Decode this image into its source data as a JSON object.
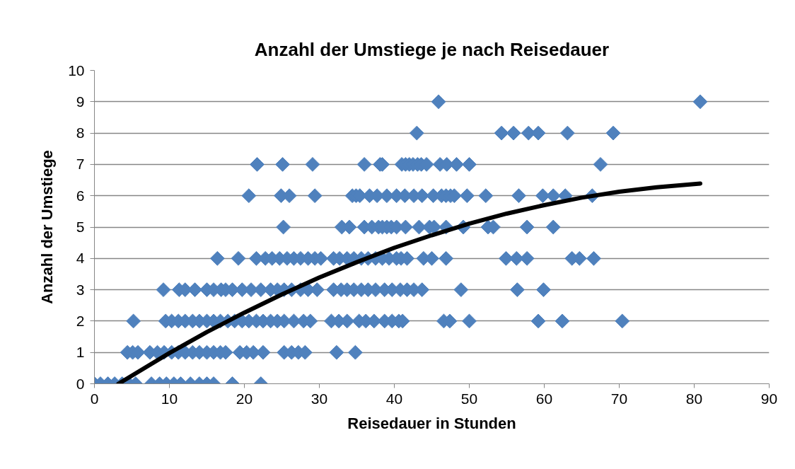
{
  "chart_data": {
    "type": "scatter",
    "title": "Anzahl der Umstiege je nach Reisedauer",
    "xlabel": "Reisedauer in Stunden",
    "ylabel": "Anzahl der Umstiege",
    "xlim": [
      0,
      90
    ],
    "xticks": [
      0,
      10,
      20,
      30,
      40,
      50,
      60,
      70,
      80,
      90
    ],
    "ylim": [
      0,
      10
    ],
    "yticks": [
      0,
      1,
      2,
      3,
      4,
      5,
      6,
      7,
      8,
      9,
      10
    ],
    "grid": "y",
    "marker": "diamond",
    "series": [
      {
        "color": "#4f81bd",
        "x": [
          0,
          0.8,
          1.8,
          2.7,
          3.7,
          4.6,
          5.5,
          7.6,
          8.7,
          9.6,
          10.6,
          11.5,
          12.8,
          14.0,
          15.0,
          15.9,
          18.4,
          22.2,
          4.4,
          5.1,
          5.8,
          7.4,
          8.4,
          9.3,
          10.3,
          11.2,
          12.1,
          13.1,
          14.0,
          15.0,
          15.9,
          16.8,
          17.5,
          19.4,
          20.3,
          21.2,
          22.5,
          25.3,
          26.3,
          27.2,
          28.1,
          32.3,
          34.8,
          5.2,
          9.5,
          10.3,
          11.2,
          12.1,
          13.1,
          14.0,
          15.0,
          15.9,
          16.8,
          17.8,
          18.7,
          19.7,
          20.6,
          21.6,
          22.5,
          23.5,
          24.4,
          25.3,
          26.6,
          27.9,
          28.8,
          31.6,
          32.6,
          33.7,
          35.3,
          36.2,
          37.3,
          38.7,
          39.7,
          40.6,
          41.1,
          46.6,
          47.4,
          50.0,
          59.2,
          62.4,
          70.4,
          9.2,
          11.3,
          12.1,
          13.4,
          15.0,
          15.9,
          16.9,
          17.5,
          18.4,
          19.7,
          20.9,
          22.2,
          23.5,
          24.4,
          25.3,
          26.3,
          27.5,
          28.5,
          29.7,
          31.9,
          32.9,
          33.7,
          34.6,
          35.6,
          36.5,
          37.5,
          38.7,
          39.7,
          40.8,
          41.7,
          42.6,
          43.7,
          48.9,
          56.4,
          59.9,
          16.4,
          19.2,
          21.6,
          22.8,
          23.7,
          24.7,
          25.7,
          26.6,
          27.5,
          28.5,
          29.4,
          30.2,
          31.9,
          32.7,
          33.7,
          34.6,
          35.6,
          36.5,
          37.5,
          38.4,
          39.3,
          40.3,
          40.9,
          41.7,
          43.9,
          45.0,
          46.9,
          54.9,
          56.3,
          57.7,
          63.7,
          64.7,
          66.6,
          25.2,
          33.0,
          34.0,
          36.0,
          37.0,
          37.9,
          38.4,
          39.0,
          39.6,
          40.3,
          41.5,
          43.3,
          44.7,
          45.3,
          46.9,
          49.2,
          52.5,
          53.2,
          57.7,
          61.2,
          20.6,
          24.9,
          26.0,
          29.4,
          34.4,
          34.9,
          35.4,
          36.7,
          37.7,
          39.0,
          40.3,
          41.4,
          42.6,
          43.7,
          45.2,
          46.3,
          46.9,
          47.5,
          48.0,
          49.7,
          52.2,
          56.6,
          59.8,
          61.2,
          62.8,
          66.4,
          21.7,
          25.1,
          29.1,
          36.0,
          38.1,
          38.4,
          41.0,
          41.5,
          42.0,
          42.5,
          43.1,
          43.6,
          44.3,
          46.1,
          47.0,
          48.3,
          50.0,
          67.5,
          43.0,
          54.3,
          55.9,
          57.9,
          59.2,
          63.1,
          69.2,
          45.9,
          80.8
        ],
        "values": [
          0,
          0,
          0,
          0,
          0,
          0,
          0,
          0,
          0,
          0,
          0,
          0,
          0,
          0,
          0,
          0,
          0,
          0,
          1,
          1,
          1,
          1,
          1,
          1,
          1,
          1,
          1,
          1,
          1,
          1,
          1,
          1,
          1,
          1,
          1,
          1,
          1,
          1,
          1,
          1,
          1,
          1,
          1,
          2,
          2,
          2,
          2,
          2,
          2,
          2,
          2,
          2,
          2,
          2,
          2,
          2,
          2,
          2,
          2,
          2,
          2,
          2,
          2,
          2,
          2,
          2,
          2,
          2,
          2,
          2,
          2,
          2,
          2,
          2,
          2,
          2,
          2,
          2,
          2,
          2,
          2,
          3,
          3,
          3,
          3,
          3,
          3,
          3,
          3,
          3,
          3,
          3,
          3,
          3,
          3,
          3,
          3,
          3,
          3,
          3,
          3,
          3,
          3,
          3,
          3,
          3,
          3,
          3,
          3,
          3,
          3,
          3,
          3,
          3,
          3,
          3,
          4,
          4,
          4,
          4,
          4,
          4,
          4,
          4,
          4,
          4,
          4,
          4,
          4,
          4,
          4,
          4,
          4,
          4,
          4,
          4,
          4,
          4,
          4,
          4,
          4,
          4,
          4,
          4,
          4,
          4,
          4,
          4,
          4,
          5,
          5,
          5,
          5,
          5,
          5,
          5,
          5,
          5,
          5,
          5,
          5,
          5,
          5,
          5,
          5,
          5,
          5,
          5,
          5,
          6,
          6,
          6,
          6,
          6,
          6,
          6,
          6,
          6,
          6,
          6,
          6,
          6,
          6,
          6,
          6,
          6,
          6,
          6,
          6,
          6,
          6,
          6,
          6,
          6,
          6,
          7,
          7,
          7,
          7,
          7,
          7,
          7,
          7,
          7,
          7,
          7,
          7,
          7,
          7,
          7,
          7,
          7,
          7,
          8,
          8,
          8,
          8,
          8,
          8,
          8,
          9,
          9
        ]
      },
      {
        "type": "line",
        "color": "#000000",
        "marker": "none",
        "x": [
          3.2,
          10,
          15,
          20,
          25,
          30,
          35,
          40,
          45,
          50,
          55,
          60,
          65,
          70,
          75,
          80.8
        ],
        "values": [
          0,
          0.98,
          1.65,
          2.27,
          2.85,
          3.39,
          3.88,
          4.34,
          4.74,
          5.11,
          5.43,
          5.7,
          5.94,
          6.13,
          6.27,
          6.39
        ]
      }
    ]
  }
}
